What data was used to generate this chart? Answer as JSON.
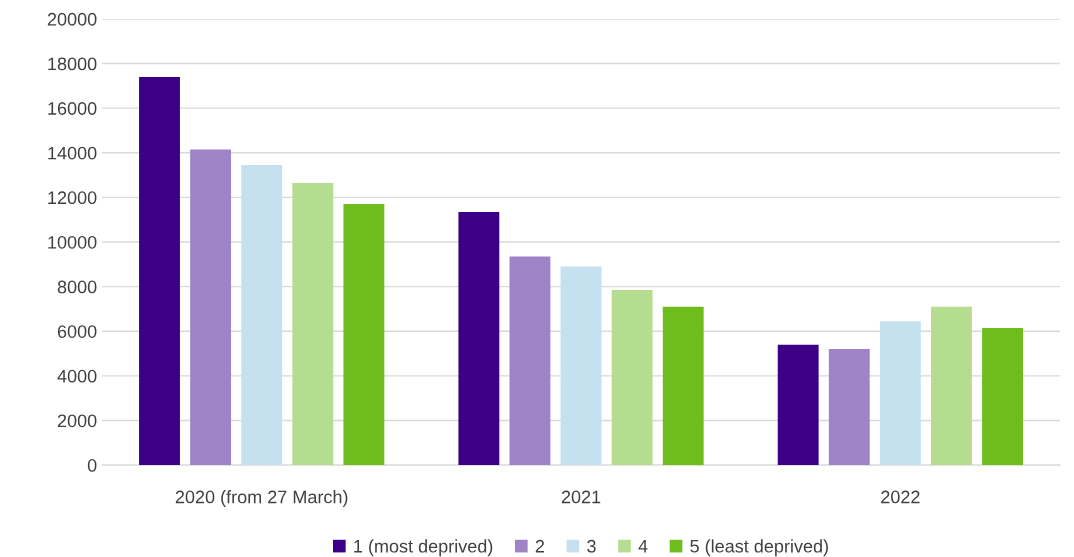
{
  "chart_data": {
    "type": "bar",
    "categories": [
      "2020 (from 27 March)",
      "2021",
      "2022"
    ],
    "series": [
      {
        "name": "1 (most deprived)",
        "color": "#3c0087",
        "values": [
          17400,
          11350,
          5400
        ]
      },
      {
        "name": "2",
        "color": "#9f83c7",
        "values": [
          14150,
          9350,
          5200
        ]
      },
      {
        "name": "3",
        "color": "#c5e0ee",
        "values": [
          13450,
          8900,
          6450
        ]
      },
      {
        "name": "4",
        "color": "#b5dd8f",
        "values": [
          12650,
          7850,
          7100
        ]
      },
      {
        "name": "5 (least deprived)",
        "color": "#6fbc1f",
        "values": [
          11700,
          7100,
          6150
        ]
      }
    ],
    "ylim": [
      0,
      20000
    ],
    "yticks": [
      0,
      2000,
      4000,
      6000,
      8000,
      10000,
      12000,
      14000,
      16000,
      18000,
      20000
    ],
    "grid": "y",
    "legend": "bottom"
  }
}
